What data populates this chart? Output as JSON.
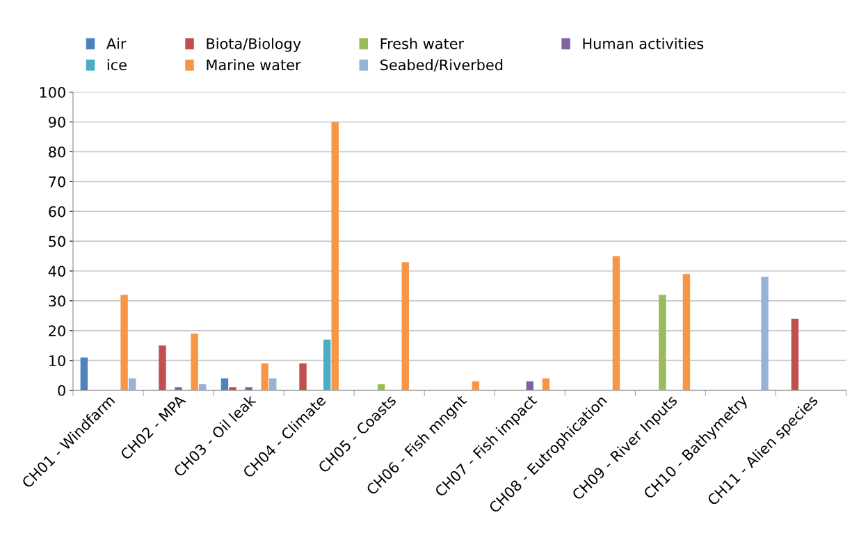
{
  "chart_data": {
    "type": "bar",
    "categories": [
      "CH01 - Windfarm",
      "CH02 - MPA",
      "CH03 - Oil leak",
      "CH04 - Climate",
      "CH05 - Coasts",
      "CH06 - Fish mngnt",
      "CH07 - Fish impact",
      "CH08 - Eutrophication",
      "CH09 - River Inputs",
      "CH10 - Bathymetry",
      "CH11 - Alien species"
    ],
    "series": [
      {
        "name": "Air",
        "color": "#4f81bd",
        "values": [
          11,
          null,
          4,
          null,
          null,
          null,
          null,
          null,
          null,
          null,
          null
        ]
      },
      {
        "name": "Biota/Biology",
        "color": "#c0504d",
        "values": [
          null,
          15,
          1,
          9,
          null,
          null,
          null,
          null,
          null,
          null,
          24
        ]
      },
      {
        "name": "Fresh water",
        "color": "#9bbb59",
        "values": [
          null,
          null,
          null,
          null,
          2,
          null,
          null,
          null,
          32,
          null,
          null
        ]
      },
      {
        "name": "Human activities",
        "color": "#8064a2",
        "values": [
          null,
          1,
          1,
          null,
          null,
          null,
          3,
          null,
          null,
          null,
          null
        ]
      },
      {
        "name": "ice",
        "color": "#4bacc6",
        "values": [
          null,
          null,
          null,
          17,
          null,
          null,
          null,
          null,
          null,
          null,
          null
        ]
      },
      {
        "name": "Marine water",
        "color": "#f79646",
        "values": [
          32,
          19,
          9,
          90,
          43,
          3,
          4,
          45,
          39,
          null,
          null
        ]
      },
      {
        "name": "Seabed/Riverbed",
        "color": "#95b3d7",
        "values": [
          4,
          2,
          4,
          null,
          null,
          null,
          null,
          null,
          null,
          38,
          null
        ]
      }
    ],
    "ylim": [
      0,
      100
    ],
    "yticks": [
      0,
      10,
      20,
      30,
      40,
      50,
      60,
      70,
      80,
      90,
      100
    ],
    "grid": "y",
    "legend": "top"
  }
}
